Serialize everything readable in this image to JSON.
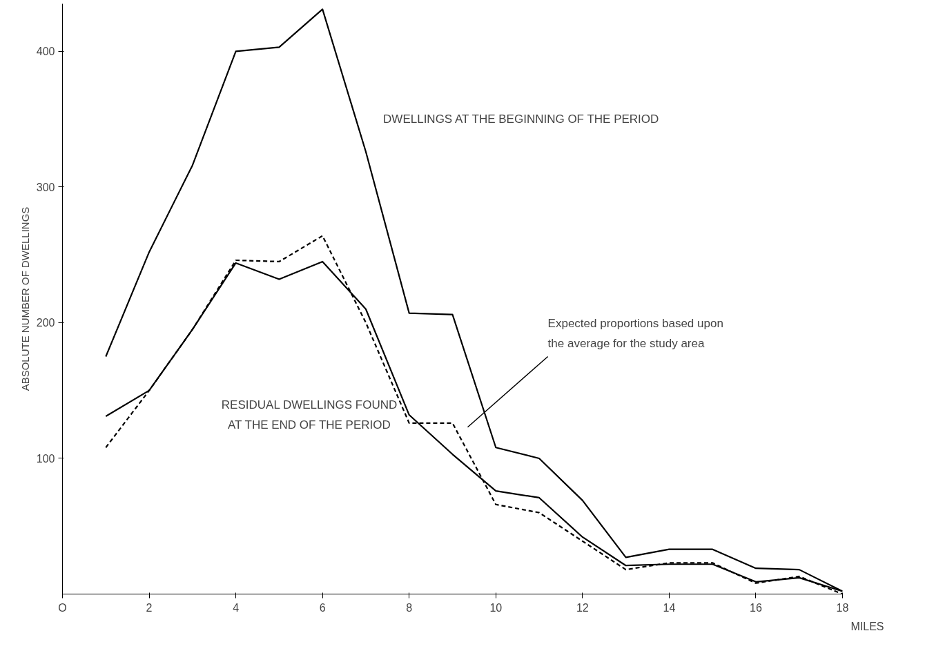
{
  "chart_data": {
    "type": "line",
    "xlabel": "MILES",
    "ylabel": "ABSOLUTE NUMBER OF DWELLINGS",
    "x": [
      1,
      2,
      3,
      4,
      5,
      6,
      7,
      8,
      9,
      10,
      11,
      12,
      13,
      14,
      15,
      16,
      17,
      18
    ],
    "series": [
      {
        "color": "#000000",
        "line_style": "solid",
        "values": [
          175,
          252,
          316,
          400,
          403,
          431,
          326,
          207,
          206,
          108,
          100,
          69,
          27,
          33,
          33,
          19,
          18,
          2
        ]
      },
      {
        "color": "#000000",
        "line_style": "solid",
        "values": [
          131,
          150,
          195,
          244,
          232,
          245,
          210,
          132,
          103,
          76,
          71,
          42,
          21,
          22,
          22,
          9,
          12,
          2
        ]
      },
      {
        "color": "#000000",
        "line_style": "dashed",
        "values": [
          108,
          150,
          195,
          246,
          245,
          264,
          200,
          126,
          126,
          66,
          60,
          39,
          18,
          23,
          23,
          8,
          13,
          0
        ]
      }
    ],
    "xlim": [
      0,
      18
    ],
    "ylim": [
      0,
      435
    ],
    "xticks": [
      {
        "value": 0,
        "label": "O"
      },
      2,
      4,
      6,
      8,
      10,
      12,
      14,
      16,
      18
    ],
    "yticks": [
      100,
      200,
      300,
      400
    ],
    "grid": false,
    "marker": "none",
    "annotations": [
      "DWELLINGS AT THE BEGINNING OF THE PERIOD",
      "RESIDUAL DWELLINGS FOUND\nAT THE END OF THE PERIOD",
      "Expected proportions based upon\nthe average for the study area"
    ]
  }
}
